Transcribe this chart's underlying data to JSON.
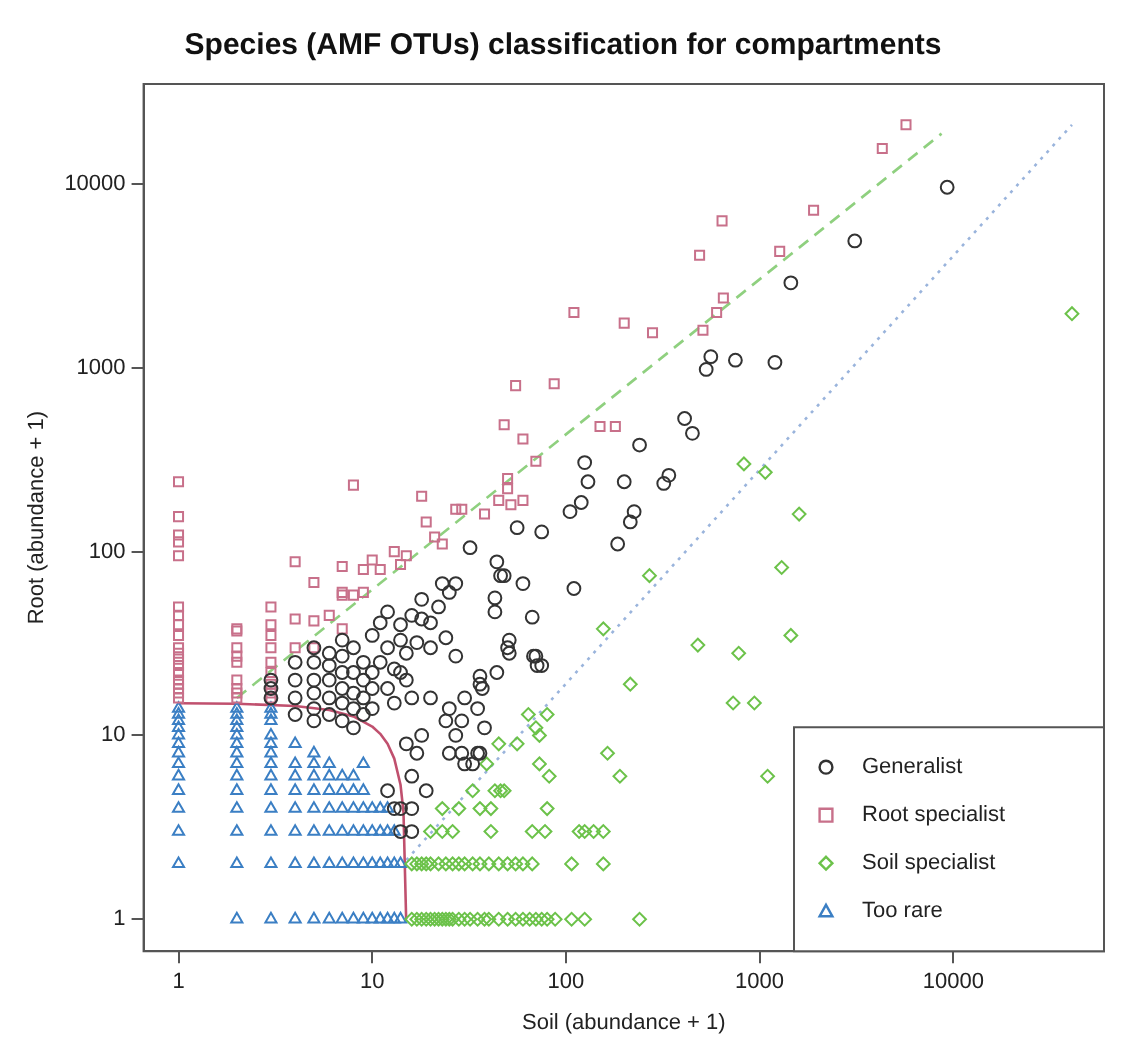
{
  "chart_data": {
    "type": "scatter",
    "title": "Species (AMF OTUs) classification for compartments",
    "xlabel": "Soil (abundance + 1)",
    "ylabel": "Root (abundance + 1)",
    "log": "xy",
    "xlim": [
      0.66,
      60000
    ],
    "ylim": [
      0.67,
      35000
    ],
    "xticks": [
      1,
      10,
      100,
      1000,
      10000
    ],
    "yticks": [
      1,
      10,
      100,
      1000,
      10000
    ],
    "legend": "bottom right",
    "series": [
      {
        "name": "Generalist",
        "type": "scatter",
        "marker": "circle",
        "color": "#333333",
        "x": [
          9300,
          3100,
          1450,
          560,
          530,
          750,
          1200,
          410,
          450,
          240,
          125,
          130,
          200,
          105,
          120,
          215,
          225,
          185,
          320,
          340,
          56,
          75,
          48,
          60,
          110,
          67,
          51,
          51,
          68,
          75,
          32,
          44,
          46,
          23,
          27,
          43,
          43,
          18,
          20,
          12,
          11,
          14,
          17,
          15,
          13,
          15,
          24,
          27,
          36,
          30,
          16,
          20,
          24,
          29,
          36,
          29,
          15,
          18,
          17,
          16,
          12,
          19,
          13,
          14,
          16,
          14,
          16,
          25,
          30,
          33,
          35,
          38,
          35,
          27,
          44,
          36,
          37,
          70,
          71,
          50,
          25,
          3,
          3,
          3,
          4,
          4,
          4,
          4,
          5,
          5,
          5,
          5,
          5,
          5,
          6,
          6,
          6,
          6,
          6,
          7,
          7,
          7,
          7,
          7,
          7,
          8,
          8,
          8,
          8,
          8,
          9,
          9,
          9,
          9,
          10,
          10,
          10,
          10,
          11,
          12,
          12,
          13,
          14,
          14,
          16,
          18,
          20,
          22,
          25
        ],
        "values": [
          9600,
          4900,
          2900,
          1150,
          980,
          1100,
          1070,
          530,
          440,
          380,
          305,
          240,
          240,
          165,
          185,
          145,
          165,
          110,
          235,
          260,
          135,
          128,
          74,
          67,
          63,
          44,
          33,
          28,
          27,
          24,
          105,
          88,
          74,
          67,
          67,
          56,
          47,
          43,
          41,
          47,
          41,
          33,
          32,
          28,
          23,
          20,
          34,
          27,
          21,
          16,
          16,
          16,
          12,
          12,
          8,
          8,
          9,
          10,
          8,
          6,
          5,
          5,
          4,
          4,
          4,
          3,
          3,
          8,
          7,
          7,
          8,
          11,
          14,
          10,
          22,
          19,
          18,
          27,
          24,
          30,
          14,
          16,
          18,
          20,
          13,
          16,
          20,
          25,
          12,
          14,
          17,
          20,
          25,
          30,
          13,
          16,
          20,
          24,
          28,
          12,
          15,
          18,
          22,
          27,
          33,
          11,
          14,
          17,
          22,
          30,
          13,
          16,
          20,
          25,
          14,
          18,
          22,
          35,
          25,
          18,
          30,
          15,
          22,
          40,
          45,
          55,
          30,
          50,
          60
        ]
      },
      {
        "name": "Root specialist",
        "type": "scatter",
        "marker": "square",
        "color": "#c8708a",
        "x": [
          5700,
          4300,
          1900,
          640,
          490,
          1270,
          650,
          600,
          510,
          110,
          200,
          280,
          87,
          55,
          48,
          60,
          150,
          180,
          70,
          50,
          52,
          60,
          8,
          4,
          5,
          7,
          9,
          10,
          11,
          13,
          15,
          14,
          18,
          19,
          21,
          23,
          27,
          29,
          38,
          45,
          50,
          7,
          7,
          8,
          9,
          4,
          5,
          6,
          7,
          4,
          5,
          1,
          1,
          1,
          1,
          1,
          1,
          1,
          1,
          1,
          1,
          1,
          1,
          1,
          1,
          1,
          1,
          1,
          1,
          1,
          2,
          2,
          2,
          2,
          2,
          2,
          2,
          2,
          2,
          3,
          3,
          3,
          3,
          3,
          3,
          3,
          3,
          3
        ],
        "values": [
          21000,
          15600,
          7200,
          6300,
          4100,
          4300,
          2400,
          2000,
          1600,
          2000,
          1750,
          1550,
          820,
          800,
          490,
          410,
          480,
          480,
          310,
          220,
          180,
          190,
          230,
          88,
          68,
          83,
          80,
          90,
          80,
          100,
          95,
          85,
          200,
          145,
          120,
          110,
          170,
          170,
          160,
          190,
          250,
          60,
          58,
          58,
          60,
          43,
          42,
          45,
          38,
          30,
          30,
          16,
          17,
          18,
          19,
          20,
          22,
          24,
          26,
          28,
          30,
          35,
          40,
          45,
          50,
          95,
          113,
          123,
          155,
          240,
          16,
          17,
          18,
          20,
          25,
          27,
          30,
          37,
          38,
          16,
          17,
          19,
          22,
          25,
          30,
          35,
          40,
          50
        ]
      },
      {
        "name": "Soil specialist",
        "type": "scatter",
        "marker": "diamond",
        "color": "#6cc24a",
        "x": [
          16,
          17,
          18,
          19,
          20,
          21,
          22,
          23,
          24,
          25,
          26,
          28,
          30,
          32,
          35,
          38,
          40,
          45,
          50,
          55,
          60,
          65,
          70,
          75,
          80,
          88,
          107,
          125,
          240,
          16,
          17,
          18,
          19,
          20,
          22,
          24,
          26,
          28,
          30,
          33,
          36,
          40,
          45,
          50,
          55,
          60,
          67,
          107,
          156,
          20,
          23,
          26,
          41,
          67,
          78,
          117,
          125,
          139,
          156,
          23,
          28,
          36,
          41,
          80,
          33,
          43,
          46,
          48,
          39,
          73,
          82,
          190,
          1100,
          164,
          45,
          56,
          64,
          80,
          70,
          73,
          215,
          730,
          940,
          780,
          480,
          41000,
          830,
          1070,
          1600,
          1300,
          1450,
          270,
          156
        ],
        "values": [
          1,
          1,
          1,
          1,
          1,
          1,
          1,
          1,
          1,
          1,
          1,
          1,
          1,
          1,
          1,
          1,
          1,
          1,
          1,
          1,
          1,
          1,
          1,
          1,
          1,
          1,
          1,
          1,
          1,
          2,
          2,
          2,
          2,
          2,
          2,
          2,
          2,
          2,
          2,
          2,
          2,
          2,
          2,
          2,
          2,
          2,
          2,
          2,
          2,
          3,
          3,
          3,
          3,
          3,
          3,
          3,
          3,
          3,
          3,
          4,
          4,
          4,
          4,
          4,
          5,
          5,
          5,
          5,
          7,
          7,
          6,
          6,
          6,
          8,
          9,
          9,
          13,
          13,
          11,
          10,
          19,
          15,
          15,
          28,
          31,
          1970,
          300,
          270,
          160,
          82,
          35,
          74,
          38
        ]
      },
      {
        "name": "Too rare",
        "type": "scatter",
        "marker": "triangle",
        "color": "#3b7fc4",
        "x": [
          1,
          1,
          1,
          1,
          1,
          1,
          1,
          1,
          1,
          1,
          1,
          1,
          1,
          2,
          2,
          2,
          2,
          2,
          2,
          2,
          2,
          2,
          2,
          2,
          2,
          2,
          2,
          3,
          3,
          3,
          3,
          3,
          3,
          3,
          3,
          3,
          3,
          3,
          3,
          3,
          4,
          4,
          4,
          4,
          4,
          4,
          4,
          4,
          5,
          5,
          5,
          5,
          5,
          5,
          5,
          5,
          6,
          6,
          6,
          6,
          6,
          6,
          6,
          7,
          7,
          7,
          7,
          7,
          7,
          8,
          8,
          8,
          8,
          8,
          8,
          9,
          9,
          9,
          9,
          9,
          9,
          10,
          10,
          10,
          10,
          11,
          11,
          11,
          11,
          12,
          12,
          12,
          12,
          13,
          13,
          13,
          14,
          14
        ],
        "values": [
          2,
          3,
          4,
          5,
          6,
          7,
          8,
          9,
          10,
          11,
          12,
          13,
          14,
          1,
          2,
          3,
          4,
          5,
          6,
          7,
          8,
          9,
          10,
          11,
          12,
          13,
          14,
          1,
          2,
          3,
          4,
          5,
          6,
          7,
          8,
          9,
          10,
          12,
          13,
          14,
          1,
          2,
          3,
          4,
          5,
          6,
          7,
          9,
          1,
          2,
          3,
          4,
          5,
          6,
          7,
          8,
          1,
          2,
          3,
          4,
          5,
          6,
          7,
          1,
          2,
          3,
          4,
          5,
          6,
          1,
          2,
          3,
          4,
          5,
          6,
          1,
          2,
          3,
          4,
          5,
          7,
          1,
          2,
          3,
          4,
          1,
          2,
          3,
          4,
          1,
          2,
          3,
          4,
          1,
          2,
          3,
          1,
          2
        ]
      },
      {
        "type": "line",
        "marker": "none",
        "line_style": "solid",
        "color": "#c0506e",
        "x": [
          1,
          2,
          4,
          6,
          8,
          10,
          11,
          12,
          13,
          14,
          14.5,
          14.97
        ],
        "values": [
          14.97,
          14.87,
          14.46,
          13.75,
          12.69,
          11.18,
          10.2,
          9,
          7.48,
          5.39,
          3.84,
          1
        ]
      },
      {
        "type": "line",
        "marker": "none",
        "line_style": "dashed",
        "color": "#8fd07f",
        "x": [
          2,
          8700
        ],
        "values": [
          16,
          18800
        ]
      },
      {
        "type": "line",
        "marker": "none",
        "line_style": "dotted",
        "color": "#9ab4dc",
        "x": [
          15,
          41000
        ],
        "values": [
          2.1,
          21000
        ]
      }
    ]
  }
}
